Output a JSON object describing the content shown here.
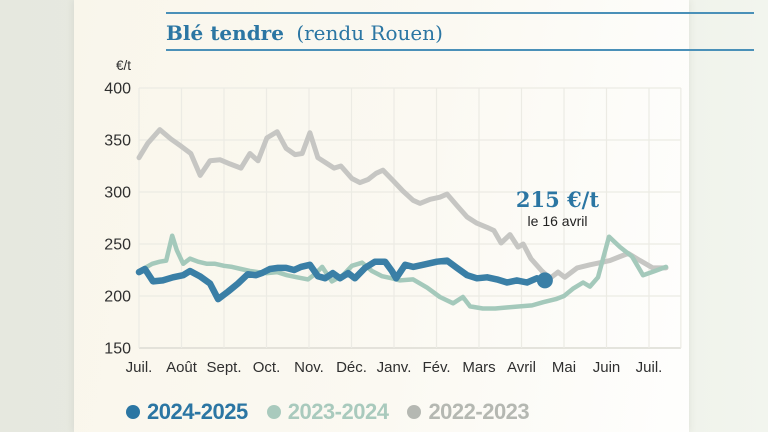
{
  "header": {
    "title_bold": "Blé tendre",
    "title_regular": "(rendu Rouen)",
    "title_color": "#2b76a3",
    "rule_color": "#4a90b8"
  },
  "annotation": {
    "value": "215 €/t",
    "date": "le 16 avril"
  },
  "chart_data": {
    "type": "line",
    "title": "Blé tendre (rendu Rouen)",
    "ylabel": "€/t",
    "ylim": [
      150,
      400
    ],
    "yticks": [
      150,
      200,
      250,
      300,
      350,
      400
    ],
    "x_categories": [
      "Juil.",
      "Août",
      "Sept.",
      "Oct.",
      "Nov.",
      "Déc.",
      "Janv.",
      "Fév.",
      "Mars",
      "Avril",
      "Mai",
      "Juin",
      "Juil."
    ],
    "x_unit": "months_from_july",
    "grid": true,
    "legend_position": "bottom",
    "grid_color": "#ecebe4",
    "axis_line_color": "#dcdbd3",
    "tick_label_color": "#2f2f2f",
    "series": [
      {
        "name": "2022-2023",
        "color": "#c6c6c3",
        "legend_color": "#b5b8b2",
        "width": 5,
        "end_dot": false,
        "points": [
          [
            0,
            333
          ],
          [
            0.21,
            347
          ],
          [
            0.49,
            360
          ],
          [
            0.75,
            351
          ],
          [
            0.99,
            344
          ],
          [
            1.22,
            337
          ],
          [
            1.44,
            316
          ],
          [
            1.67,
            330
          ],
          [
            1.91,
            331
          ],
          [
            2.14,
            327
          ],
          [
            2.4,
            323
          ],
          [
            2.61,
            337
          ],
          [
            2.8,
            330
          ],
          [
            3.01,
            352
          ],
          [
            3.25,
            358
          ],
          [
            3.46,
            342
          ],
          [
            3.67,
            336
          ],
          [
            3.84,
            337
          ],
          [
            4.02,
            357
          ],
          [
            4.21,
            333
          ],
          [
            4.4,
            328
          ],
          [
            4.59,
            323
          ],
          [
            4.75,
            325
          ],
          [
            5.01,
            313
          ],
          [
            5.2,
            309
          ],
          [
            5.39,
            312
          ],
          [
            5.58,
            318
          ],
          [
            5.74,
            321
          ],
          [
            5.98,
            311
          ],
          [
            6.21,
            301
          ],
          [
            6.45,
            292
          ],
          [
            6.61,
            289
          ],
          [
            6.85,
            293
          ],
          [
            7.08,
            295
          ],
          [
            7.25,
            298
          ],
          [
            7.48,
            287
          ],
          [
            7.72,
            276
          ],
          [
            7.95,
            270
          ],
          [
            8.19,
            266
          ],
          [
            8.35,
            263
          ],
          [
            8.52,
            251
          ],
          [
            8.73,
            259
          ],
          [
            8.92,
            247
          ],
          [
            9.04,
            250
          ],
          [
            9.22,
            236
          ],
          [
            9.48,
            224
          ],
          [
            9.67,
            217
          ],
          [
            9.86,
            223
          ],
          [
            10.02,
            218
          ],
          [
            10.31,
            227
          ],
          [
            10.61,
            230
          ],
          [
            10.85,
            232
          ],
          [
            11.08,
            234
          ],
          [
            11.32,
            238
          ],
          [
            11.51,
            241
          ],
          [
            11.79,
            234
          ],
          [
            12.09,
            227
          ],
          [
            12.4,
            227
          ]
        ]
      },
      {
        "name": "2023-2024",
        "color": "#a4c9bb",
        "legend_color": "#a9cabd",
        "width": 4.5,
        "end_dot": false,
        "points": [
          [
            0,
            224
          ],
          [
            0.14,
            227
          ],
          [
            0.31,
            231
          ],
          [
            0.49,
            233
          ],
          [
            0.64,
            234
          ],
          [
            0.78,
            258
          ],
          [
            0.89,
            244
          ],
          [
            1.04,
            231
          ],
          [
            1.2,
            236
          ],
          [
            1.39,
            233
          ],
          [
            1.6,
            231
          ],
          [
            1.79,
            231
          ],
          [
            2.0,
            229
          ],
          [
            2.19,
            228
          ],
          [
            2.4,
            226
          ],
          [
            2.61,
            224
          ],
          [
            2.8,
            223
          ],
          [
            3.01,
            222
          ],
          [
            3.25,
            223
          ],
          [
            3.48,
            220
          ],
          [
            3.72,
            218
          ],
          [
            3.98,
            216
          ],
          [
            4.14,
            221
          ],
          [
            4.31,
            228
          ],
          [
            4.54,
            214
          ],
          [
            4.8,
            220
          ],
          [
            5.01,
            229
          ],
          [
            5.25,
            232
          ],
          [
            5.48,
            224
          ],
          [
            5.72,
            219
          ],
          [
            5.95,
            217
          ],
          [
            6.14,
            215
          ],
          [
            6.45,
            216
          ],
          [
            6.78,
            208
          ],
          [
            7.08,
            199
          ],
          [
            7.39,
            193
          ],
          [
            7.62,
            199
          ],
          [
            7.79,
            190
          ],
          [
            8.09,
            188
          ],
          [
            8.38,
            188
          ],
          [
            8.68,
            189
          ],
          [
            8.96,
            190
          ],
          [
            9.25,
            191
          ],
          [
            9.51,
            194
          ],
          [
            9.81,
            197
          ],
          [
            10.0,
            200
          ],
          [
            10.21,
            207
          ],
          [
            10.45,
            213
          ],
          [
            10.61,
            209
          ],
          [
            10.8,
            218
          ],
          [
            11.06,
            257
          ],
          [
            11.32,
            247
          ],
          [
            11.6,
            238
          ],
          [
            11.86,
            220
          ],
          [
            12.14,
            224
          ],
          [
            12.4,
            228
          ]
        ]
      },
      {
        "name": "2024-2025",
        "color": "#3a7fa6",
        "legend_color": "#2b76a3",
        "width": 6.5,
        "end_dot": true,
        "points": [
          [
            0,
            223
          ],
          [
            0.14,
            226
          ],
          [
            0.33,
            214
          ],
          [
            0.56,
            215
          ],
          [
            0.8,
            218
          ],
          [
            1.04,
            220
          ],
          [
            1.2,
            224
          ],
          [
            1.43,
            219
          ],
          [
            1.67,
            212
          ],
          [
            1.86,
            197
          ],
          [
            2.09,
            204
          ],
          [
            2.33,
            212
          ],
          [
            2.56,
            221
          ],
          [
            2.75,
            220
          ],
          [
            2.89,
            222
          ],
          [
            3.08,
            226
          ],
          [
            3.27,
            227
          ],
          [
            3.46,
            227
          ],
          [
            3.65,
            225
          ],
          [
            3.81,
            228
          ],
          [
            4.02,
            230
          ],
          [
            4.21,
            219
          ],
          [
            4.38,
            217
          ],
          [
            4.56,
            222
          ],
          [
            4.73,
            217
          ],
          [
            4.92,
            222
          ],
          [
            5.08,
            217
          ],
          [
            5.32,
            227
          ],
          [
            5.55,
            233
          ],
          [
            5.79,
            233
          ],
          [
            5.95,
            224
          ],
          [
            6.05,
            217
          ],
          [
            6.26,
            230
          ],
          [
            6.45,
            228
          ],
          [
            6.68,
            230
          ],
          [
            7.01,
            233
          ],
          [
            7.25,
            234
          ],
          [
            7.48,
            227
          ],
          [
            7.72,
            220
          ],
          [
            7.95,
            217
          ],
          [
            8.19,
            218
          ],
          [
            8.42,
            216
          ],
          [
            8.66,
            213
          ],
          [
            8.89,
            215
          ],
          [
            9.13,
            213
          ],
          [
            9.36,
            217
          ],
          [
            9.55,
            215
          ]
        ]
      }
    ],
    "annotation": {
      "value": "215 €/t",
      "date": "le 16 avril",
      "series": "2024-2025"
    }
  },
  "legend": {
    "items": [
      {
        "label": "2024-2025"
      },
      {
        "label": "2023-2024"
      },
      {
        "label": "2022-2023"
      }
    ]
  }
}
